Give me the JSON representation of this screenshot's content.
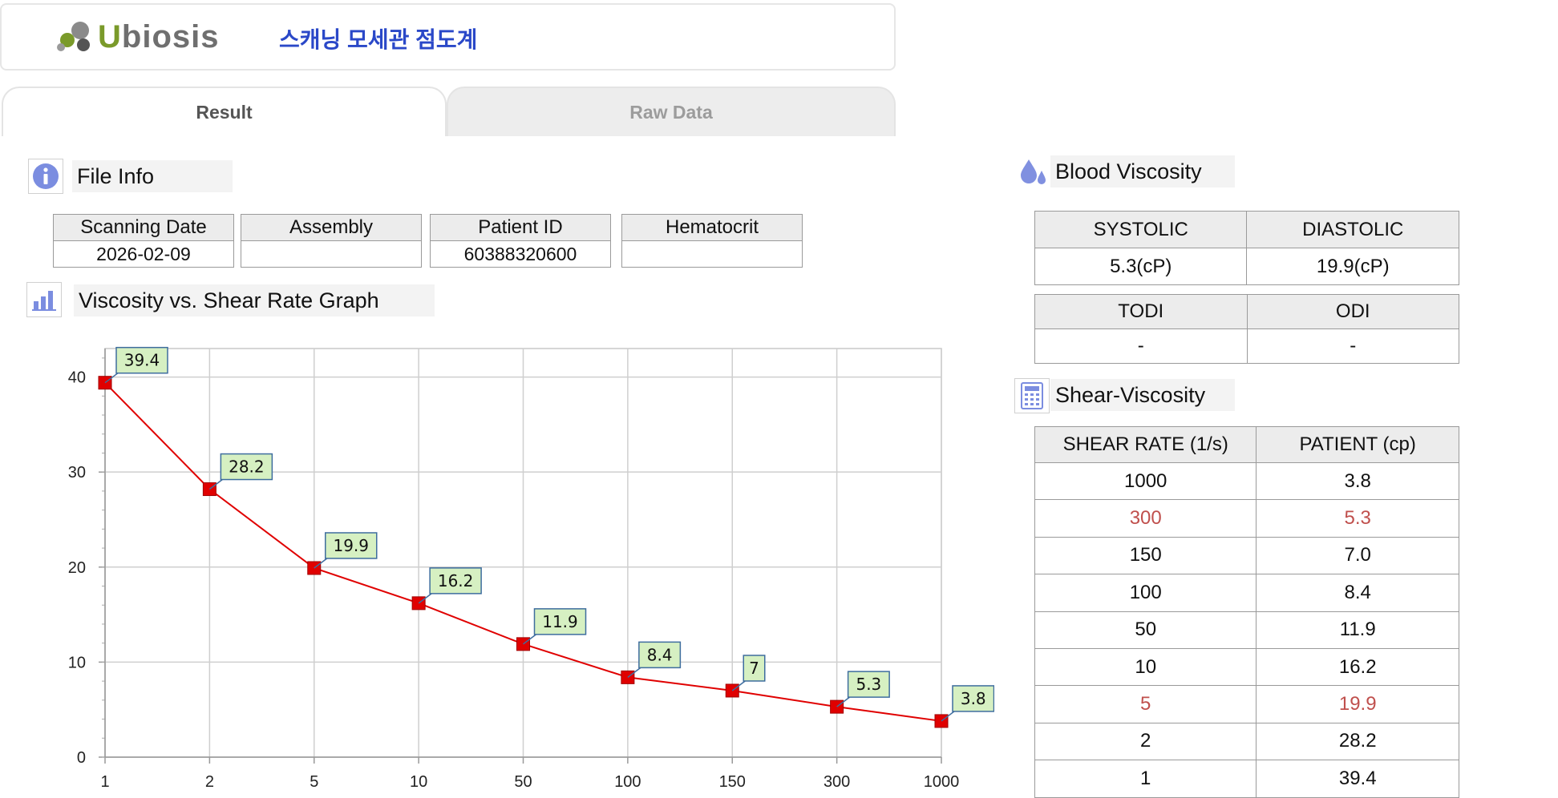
{
  "app": {
    "logo_text_u": "U",
    "logo_text_rest": "biosis",
    "title": "스캐닝 모세관 점도계"
  },
  "tabs": [
    {
      "label": "Result",
      "active": true
    },
    {
      "label": "Raw Data",
      "active": false
    }
  ],
  "file_info": {
    "title": "File Info",
    "icon": "info-icon",
    "columns": [
      {
        "header": "Scanning Date",
        "value": "2026-02-09"
      },
      {
        "header": "Assembly",
        "value": ""
      },
      {
        "header": "Patient ID",
        "value": "60388320600"
      },
      {
        "header": "Hematocrit",
        "value": ""
      }
    ]
  },
  "graph_section": {
    "title": "Viscosity vs. Shear Rate Graph",
    "icon": "bar-chart-icon"
  },
  "blood_viscosity": {
    "title": "Blood Viscosity",
    "icon": "blood-drops-icon",
    "systolic_label": "SYSTOLIC",
    "diastolic_label": "DIASTOLIC",
    "systolic_value": "5.3(cP)",
    "diastolic_value": "19.9(cP)",
    "todi_label": "TODI",
    "odi_label": "ODI",
    "todi_value": "-",
    "odi_value": "-"
  },
  "shear_viscosity": {
    "title": "Shear-Viscosity",
    "icon": "calculator-icon",
    "col1": "SHEAR RATE (1/s)",
    "col2": "PATIENT (cp)",
    "rows": [
      {
        "rate": "1000",
        "patient": "3.8",
        "highlight": false
      },
      {
        "rate": "300",
        "patient": "5.3",
        "highlight": true
      },
      {
        "rate": "150",
        "patient": "7.0",
        "highlight": false
      },
      {
        "rate": "100",
        "patient": "8.4",
        "highlight": false
      },
      {
        "rate": "50",
        "patient": "11.9",
        "highlight": false
      },
      {
        "rate": "10",
        "patient": "16.2",
        "highlight": false
      },
      {
        "rate": "5",
        "patient": "19.9",
        "highlight": true
      },
      {
        "rate": "2",
        "patient": "28.2",
        "highlight": false
      },
      {
        "rate": "1",
        "patient": "39.4",
        "highlight": false
      }
    ]
  },
  "colors": {
    "series": "#e00000",
    "highlight_text": "#c0504d",
    "title_blue": "#2a48c8",
    "label_fill": "#d6f0c2"
  },
  "chart_data": {
    "type": "line",
    "categories": [
      "1",
      "2",
      "5",
      "10",
      "50",
      "100",
      "150",
      "300",
      "1000"
    ],
    "series": [
      {
        "values": [
          39.4,
          28.2,
          19.9,
          16.2,
          11.9,
          8.4,
          7,
          5.3,
          3.8
        ]
      }
    ],
    "data_labels": [
      "39.4",
      "28.2",
      "19.9",
      "16.2",
      "11.9",
      "8.4",
      "7",
      "5.3",
      "3.8"
    ],
    "y_ticks": [
      "0",
      "10",
      "20",
      "30",
      "40"
    ],
    "ylim": [
      0,
      43
    ],
    "grid": true,
    "legend": "none",
    "title": "",
    "xlabel": "",
    "ylabel": ""
  }
}
